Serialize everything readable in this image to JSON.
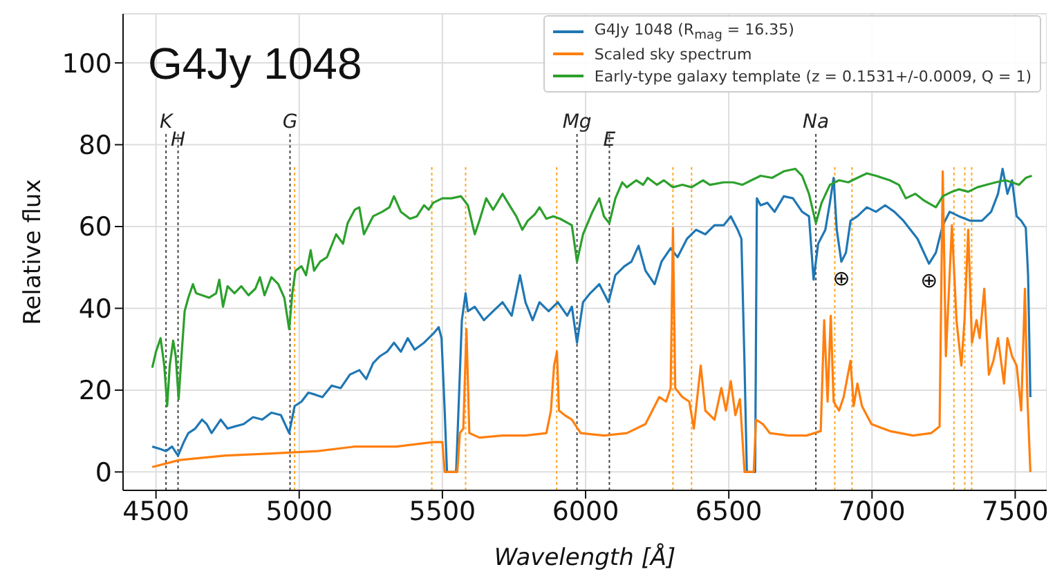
{
  "chart_data": {
    "type": "line",
    "xlabel": "Wavelength [Å]",
    "ylabel": "Relative flux",
    "xlim": [
      4385,
      7610
    ],
    "ylim": [
      -4.5,
      112
    ],
    "xticks": [
      4500,
      5000,
      5500,
      6000,
      6500,
      7000,
      7500
    ],
    "yticks": [
      0,
      20,
      40,
      60,
      80,
      100
    ],
    "grid": true,
    "legend": "top right",
    "marker": "none",
    "annotations": [
      "G4Jy 1048",
      {
        "text": "⊕",
        "x": 6893,
        "y": 51.4
      },
      {
        "text": "⊕",
        "x": 7199,
        "y": 50.9
      }
    ],
    "ref_lines": [
      {
        "axis": "x",
        "value": 4535,
        "label": "K",
        "color": "#444444",
        "line_style": "dotted"
      },
      {
        "axis": "x",
        "value": 4577,
        "label": "H",
        "color": "#444444",
        "line_style": "dotted"
      },
      {
        "axis": "x",
        "value": 4968,
        "label": "G",
        "color": "#444444",
        "line_style": "dotted"
      },
      {
        "axis": "x",
        "value": 5970,
        "label": "Mg",
        "color": "#444444",
        "line_style": "dotted"
      },
      {
        "axis": "x",
        "value": 6083,
        "label": "E",
        "color": "#444444",
        "line_style": "dotted"
      },
      {
        "axis": "x",
        "value": 6804,
        "label": "Na",
        "color": "#444444",
        "line_style": "dotted"
      },
      {
        "axis": "x",
        "value": 4984,
        "color": "#ffa726",
        "line_style": "dotted"
      },
      {
        "axis": "x",
        "value": 5463,
        "color": "#ffa726",
        "line_style": "dotted"
      },
      {
        "axis": "x",
        "value": 5581,
        "color": "#ffa726",
        "line_style": "dotted"
      },
      {
        "axis": "x",
        "value": 5899,
        "color": "#ffa726",
        "line_style": "dotted"
      },
      {
        "axis": "x",
        "value": 6305,
        "color": "#ffa726",
        "line_style": "dotted"
      },
      {
        "axis": "x",
        "value": 6370,
        "color": "#ffa726",
        "line_style": "dotted"
      },
      {
        "axis": "x",
        "value": 6870,
        "color": "#ffa726",
        "line_style": "dotted"
      },
      {
        "axis": "x",
        "value": 6930,
        "color": "#ffa726",
        "line_style": "dotted"
      },
      {
        "axis": "x",
        "value": 7286,
        "color": "#ffa726",
        "line_style": "dotted"
      },
      {
        "axis": "x",
        "value": 7324,
        "color": "#ffa726",
        "line_style": "dotted"
      },
      {
        "axis": "x",
        "value": 7348,
        "color": "#ffa726",
        "line_style": "dotted"
      }
    ],
    "series": [
      {
        "name": "G4Jy 1048 (R$_{mag}$ = 16.35)",
        "color": "#1f77b4",
        "x": [
          4487,
          4516,
          4535,
          4556,
          4577,
          4597,
          4613,
          4637,
          4661,
          4677,
          4694,
          4726,
          4750,
          4774,
          4806,
          4839,
          4871,
          4903,
          4936,
          4965,
          4984,
          5008,
          5032,
          5056,
          5081,
          5113,
          5145,
          5177,
          5210,
          5234,
          5258,
          5282,
          5307,
          5331,
          5355,
          5379,
          5403,
          5436,
          5468,
          5487,
          5497,
          5508,
          5516,
          5548,
          5568,
          5581,
          5589,
          5613,
          5645,
          5677,
          5710,
          5742,
          5771,
          5790,
          5815,
          5839,
          5871,
          5903,
          5936,
          5952,
          5970,
          5991,
          6016,
          6048,
          6080,
          6104,
          6136,
          6160,
          6185,
          6209,
          6241,
          6265,
          6297,
          6321,
          6354,
          6386,
          6418,
          6450,
          6482,
          6507,
          6531,
          6544,
          6555,
          6563,
          6592,
          6598,
          6611,
          6635,
          6660,
          6692,
          6724,
          6756,
          6780,
          6796,
          6812,
          6837,
          6853,
          6866,
          6877,
          6893,
          6909,
          6925,
          6949,
          6982,
          7014,
          7046,
          7078,
          7110,
          7159,
          7199,
          7223,
          7247,
          7271,
          7304,
          7344,
          7384,
          7416,
          7440,
          7456,
          7473,
          7489,
          7505,
          7521,
          7537,
          7545,
          7553
        ],
        "values": [
          6.2,
          5.6,
          5.1,
          6.2,
          4.0,
          7.3,
          9.5,
          10.6,
          12.8,
          11.7,
          9.5,
          12.8,
          10.6,
          11.1,
          11.7,
          13.4,
          12.8,
          14.5,
          13.9,
          9.5,
          16.1,
          17.2,
          19.4,
          18.9,
          18.3,
          21.1,
          20.5,
          23.8,
          24.9,
          22.7,
          26.6,
          28.3,
          29.4,
          31.6,
          29.4,
          32.7,
          29.9,
          31.6,
          33.8,
          35.4,
          32.7,
          15.0,
          0,
          0,
          37.1,
          43.7,
          39.3,
          40.4,
          37.1,
          39.3,
          41.5,
          38.2,
          48.1,
          41.5,
          37.1,
          41.5,
          39.3,
          41.5,
          38.2,
          40.4,
          31.6,
          41.5,
          43.7,
          45.9,
          41.5,
          48.1,
          50.3,
          51.4,
          55.3,
          49.2,
          45.9,
          51.4,
          54.7,
          52.5,
          57.0,
          59.2,
          58.1,
          60.3,
          60.3,
          62.5,
          59.2,
          57.0,
          26.0,
          0,
          0,
          66.9,
          65.2,
          65.8,
          63.6,
          67.4,
          66.9,
          63.6,
          62.5,
          47.0,
          55.8,
          59.2,
          65.8,
          71.9,
          59.2,
          51.4,
          53.6,
          61.4,
          62.5,
          64.7,
          63.6,
          65.2,
          63.6,
          61.4,
          57.0,
          50.9,
          53.6,
          60.3,
          63.6,
          62.5,
          61.4,
          61.4,
          63.6,
          68.0,
          74.1,
          68.0,
          71.3,
          62.5,
          61.4,
          59.7,
          48.1,
          18.3
        ]
      },
      {
        "name": "Scaled sky spectrum",
        "color": "#ff7f0e",
        "x": [
          4487,
          4581,
          4742,
          4903,
          5065,
          5194,
          5339,
          5468,
          5500,
          5508,
          5552,
          5561,
          5573,
          5584,
          5594,
          5629,
          5710,
          5790,
          5863,
          5879,
          5890,
          5900,
          5907,
          5927,
          5952,
          5983,
          6064,
          6144,
          6209,
          6241,
          6257,
          6281,
          6297,
          6305,
          6313,
          6338,
          6362,
          6378,
          6402,
          6418,
          6450,
          6474,
          6490,
          6507,
          6523,
          6539,
          6555,
          6587,
          6595,
          6619,
          6643,
          6708,
          6772,
          6821,
          6833,
          6845,
          6856,
          6866,
          6885,
          6901,
          6925,
          6936,
          6949,
          6965,
          6998,
          7062,
          7143,
          7207,
          7236,
          7247,
          7258,
          7279,
          7295,
          7312,
          7323,
          7336,
          7349,
          7365,
          7376,
          7392,
          7408,
          7424,
          7440,
          7461,
          7473,
          7489,
          7505,
          7521,
          7534,
          7542,
          7553
        ],
        "values": [
          1.2,
          2.9,
          4.0,
          4.5,
          5.1,
          6.2,
          6.2,
          7.3,
          7.3,
          0,
          0,
          9.5,
          10.6,
          34.9,
          9.5,
          8.4,
          8.9,
          8.9,
          9.5,
          15.0,
          26.0,
          29.4,
          15.0,
          13.9,
          12.8,
          9.5,
          8.9,
          9.5,
          11.7,
          16.1,
          18.3,
          17.2,
          20.5,
          59.7,
          20.5,
          18.3,
          17.2,
          10.6,
          26.0,
          15.0,
          12.8,
          20.5,
          15.0,
          22.2,
          13.9,
          17.8,
          0,
          0,
          12.8,
          11.7,
          9.5,
          8.9,
          8.9,
          10.0,
          37.1,
          17.2,
          38.2,
          17.2,
          15.0,
          18.3,
          27.2,
          16.1,
          21.6,
          16.1,
          11.7,
          10.0,
          8.9,
          9.5,
          11.1,
          73.5,
          28.3,
          60.3,
          37.1,
          26.0,
          37.1,
          59.2,
          31.6,
          37.1,
          32.7,
          44.8,
          23.8,
          27.2,
          32.7,
          21.6,
          32.7,
          28.3,
          26.0,
          15.0,
          44.8,
          19.4,
          0
        ]
      },
      {
        "name": "Early-type galaxy template (z = 0.1531+/-0.0009, Q = 1)",
        "color": "#2ca02c",
        "x": [
          4487,
          4500,
          4516,
          4529,
          4539,
          4548,
          4560,
          4569,
          4579,
          4589,
          4600,
          4613,
          4629,
          4640,
          4661,
          4685,
          4710,
          4721,
          4734,
          4750,
          4774,
          4798,
          4823,
          4847,
          4863,
          4879,
          4903,
          4927,
          4948,
          4965,
          4976,
          4987,
          5008,
          5024,
          5040,
          5052,
          5073,
          5097,
          5129,
          5153,
          5169,
          5194,
          5210,
          5226,
          5258,
          5290,
          5315,
          5331,
          5355,
          5387,
          5411,
          5436,
          5452,
          5468,
          5500,
          5532,
          5565,
          5589,
          5613,
          5629,
          5653,
          5677,
          5710,
          5734,
          5758,
          5779,
          5798,
          5823,
          5839,
          5863,
          5887,
          5911,
          5952,
          5970,
          5991,
          6024,
          6048,
          6064,
          6083,
          6104,
          6128,
          6144,
          6177,
          6201,
          6217,
          6249,
          6273,
          6305,
          6338,
          6370,
          6410,
          6434,
          6482,
          6515,
          6547,
          6579,
          6611,
          6651,
          6692,
          6732,
          6756,
          6780,
          6804,
          6824,
          6853,
          6885,
          6917,
          6949,
          6982,
          7014,
          7062,
          7094,
          7118,
          7151,
          7183,
          7223,
          7247,
          7279,
          7304,
          7336,
          7368,
          7400,
          7432,
          7465,
          7489,
          7513,
          7537,
          7558
        ],
        "values": [
          25.5,
          29.4,
          32.7,
          26.0,
          16.1,
          26.0,
          32.1,
          28.3,
          17.8,
          28.3,
          39.3,
          42.6,
          45.9,
          43.7,
          43.2,
          42.6,
          43.7,
          47.0,
          40.4,
          45.4,
          43.7,
          45.4,
          43.2,
          44.8,
          47.6,
          43.2,
          47.6,
          45.9,
          42.6,
          34.9,
          43.7,
          49.2,
          50.3,
          48.1,
          54.2,
          49.2,
          51.4,
          52.5,
          58.1,
          55.8,
          60.8,
          64.1,
          64.7,
          58.1,
          62.5,
          63.6,
          64.7,
          67.4,
          63.6,
          61.9,
          62.5,
          65.2,
          64.1,
          65.8,
          66.9,
          66.9,
          67.4,
          65.2,
          58.1,
          61.4,
          66.9,
          64.1,
          68.0,
          65.2,
          62.5,
          59.2,
          61.4,
          63.0,
          64.7,
          61.9,
          62.5,
          61.9,
          60.3,
          51.4,
          58.1,
          63.6,
          66.9,
          62.5,
          60.8,
          66.9,
          70.8,
          69.6,
          71.3,
          70.2,
          71.9,
          70.2,
          71.3,
          69.6,
          70.2,
          69.6,
          71.3,
          70.2,
          70.8,
          70.8,
          70.2,
          71.3,
          72.4,
          71.9,
          73.5,
          74.1,
          72.4,
          68.0,
          60.8,
          65.8,
          70.2,
          71.3,
          70.8,
          71.9,
          73.0,
          72.4,
          71.3,
          70.2,
          66.9,
          68.0,
          66.3,
          64.7,
          67.4,
          68.5,
          69.1,
          68.5,
          69.6,
          70.2,
          70.8,
          71.3,
          70.8,
          70.2,
          71.9,
          72.4
        ]
      }
    ]
  }
}
